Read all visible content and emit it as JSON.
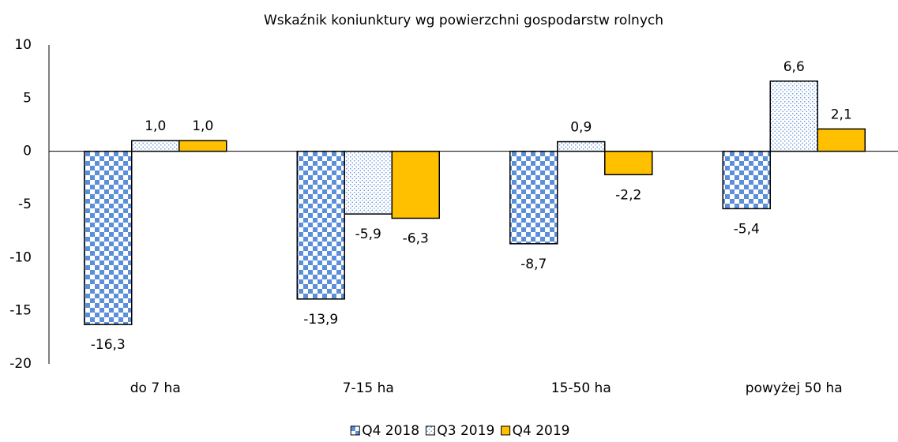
{
  "chart_data": {
    "type": "bar",
    "title": "Wskaźnik koniunktury wg powierzchni gospodarstw rolnych",
    "categories": [
      "do 7 ha",
      "7-15 ha",
      "15-50 ha",
      "powyżej 50 ha"
    ],
    "series": [
      {
        "name": "Q4 2018",
        "color": "#5b8fd9",
        "pattern": "checker",
        "values": [
          -16.3,
          -13.9,
          -8.7,
          -5.4
        ],
        "value_labels": [
          "-16,3",
          "-13,9",
          "-8,7",
          "-5,4"
        ]
      },
      {
        "name": "Q3 2019",
        "color": "#5b8fd9",
        "pattern": "dots",
        "values": [
          1.0,
          -5.9,
          0.9,
          6.6
        ],
        "value_labels": [
          "1,0",
          "-5,9",
          "0,9",
          "6,6"
        ]
      },
      {
        "name": "Q4 2019",
        "color": "#ffc000",
        "pattern": "solid",
        "values": [
          1.0,
          -6.3,
          -2.2,
          2.1
        ],
        "value_labels": [
          "1,0",
          "-6,3",
          "-2,2",
          "2,1"
        ]
      }
    ],
    "ylim": [
      -20,
      10
    ],
    "yticks": [
      -20,
      -15,
      -10,
      -5,
      0,
      5,
      10
    ],
    "grid": false,
    "legend": "bottom"
  }
}
